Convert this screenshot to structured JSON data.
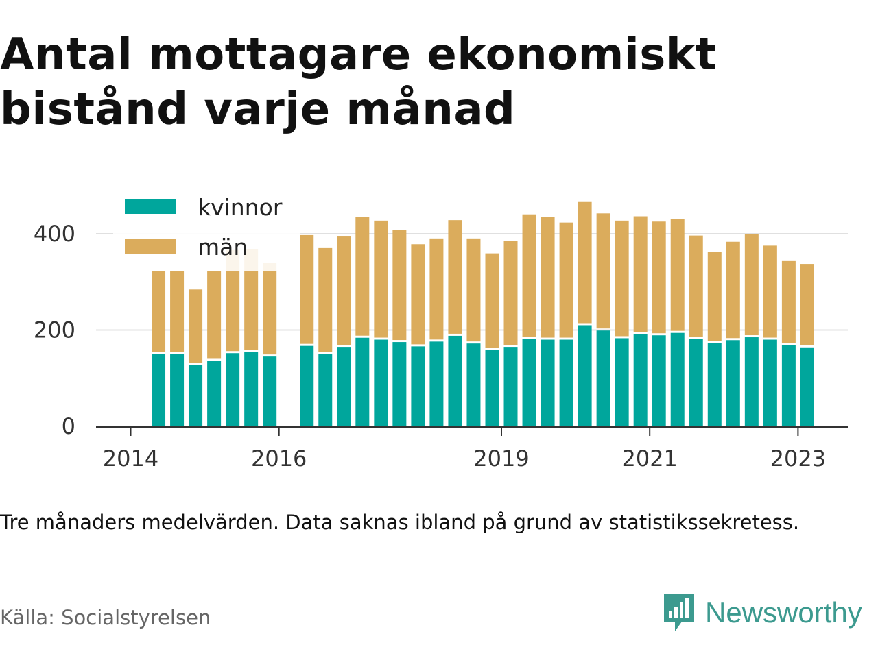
{
  "title": "Antal mottagare ekonomiskt bistånd varje månad",
  "note": "Tre månaders medelvärden. Data saknas ibland på grund av statistikssekretess.",
  "source": "Källa: Socialstyrelsen",
  "brand": "Newsworthy",
  "colors": {
    "kvinnor": "#00a69c",
    "man": "#dbac5c",
    "grid": "#e0e0e0",
    "axis": "#333333",
    "brand": "#3c9a8f"
  },
  "chart_data": {
    "type": "bar",
    "stacked": true,
    "legend_position": "top-left",
    "grid": true,
    "ylim": [
      0,
      480
    ],
    "yticks": [
      0,
      200,
      400
    ],
    "xticks": [
      {
        "label": "2014",
        "x": 2014.0
      },
      {
        "label": "2016",
        "x": 2016.0
      },
      {
        "label": "2019",
        "x": 2019.0
      },
      {
        "label": "2021",
        "x": 2021.0
      },
      {
        "label": "2023",
        "x": 2023.0
      }
    ],
    "x": [
      2014.375,
      2014.625,
      2014.875,
      2015.125,
      2015.375,
      2015.625,
      2015.875,
      2016.375,
      2016.625,
      2016.875,
      2017.125,
      2017.375,
      2017.625,
      2017.875,
      2018.125,
      2018.375,
      2018.625,
      2018.875,
      2019.125,
      2019.375,
      2019.625,
      2019.875,
      2020.125,
      2020.375,
      2020.625,
      2020.875,
      2021.125,
      2021.375,
      2021.625,
      2021.875,
      2022.125,
      2022.375,
      2022.625,
      2022.875,
      2023.125
    ],
    "series": [
      {
        "name": "kvinnor",
        "values": [
          150,
          150,
          128,
          136,
          152,
          154,
          145,
          167,
          150,
          165,
          184,
          180,
          175,
          166,
          176,
          188,
          172,
          159,
          165,
          182,
          180,
          180,
          210,
          199,
          183,
          192,
          189,
          194,
          182,
          173,
          179,
          185,
          180,
          169,
          164
        ]
      },
      {
        "name": "män",
        "values": [
          168,
          168,
          152,
          182,
          210,
          210,
          190,
          226,
          216,
          225,
          247,
          243,
          229,
          208,
          210,
          236,
          214,
          196,
          216,
          254,
          251,
          239,
          253,
          239,
          240,
          240,
          232,
          232,
          210,
          185,
          200,
          210,
          191,
          170,
          169
        ]
      }
    ]
  }
}
